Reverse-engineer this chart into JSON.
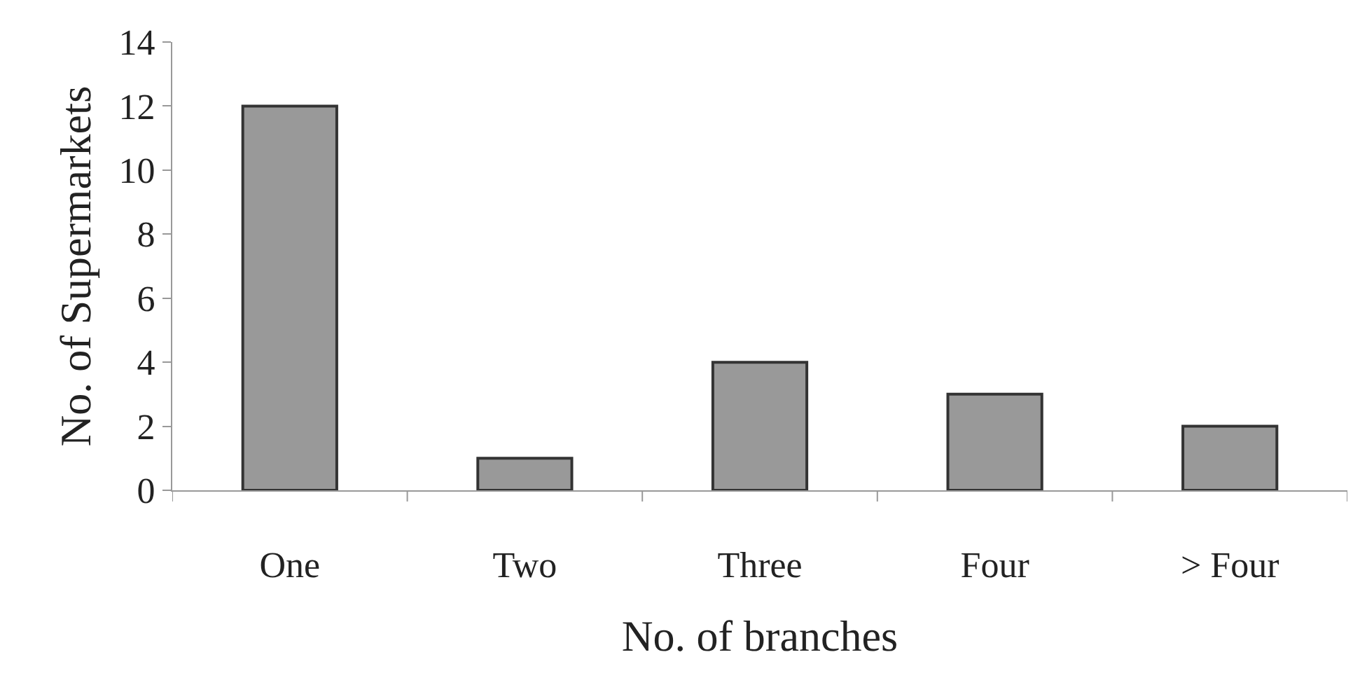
{
  "chart_data": {
    "type": "bar",
    "xlabel": "No. of branches",
    "ylabel": "No. of Supermarkets",
    "categories": [
      "One",
      "Two",
      "Three",
      "Four",
      "> Four"
    ],
    "values": [
      12,
      1,
      4,
      3,
      2
    ],
    "color": "#999999",
    "ylim": [
      0,
      14
    ],
    "yticks": [
      0,
      2,
      4,
      6,
      8,
      10,
      12,
      14
    ],
    "grid": false
  }
}
